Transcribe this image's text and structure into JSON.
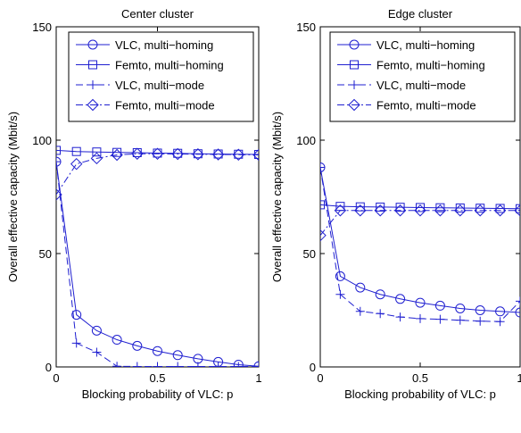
{
  "chart_data": [
    {
      "type": "line",
      "title": "Center cluster",
      "xlabel": "Blocking probability of VLC: p",
      "ylabel": "Overall effective capacity (Mbit/s)",
      "xlim": [
        0,
        1
      ],
      "ylim": [
        0,
        150
      ],
      "xticks": [
        "0",
        "0.5",
        "1"
      ],
      "yticks": [
        "0",
        "50",
        "100",
        "150"
      ],
      "grid": false,
      "legend_position": "top-right",
      "x": [
        0,
        0.1,
        0.2,
        0.3,
        0.4,
        0.5,
        0.6,
        0.7,
        0.8,
        0.9,
        1.0
      ],
      "series": [
        {
          "name": "VLC, multi−homing",
          "marker": "circle",
          "dash": "solid",
          "values": [
            90.5,
            23,
            16,
            12,
            9.3,
            7,
            5.2,
            3.6,
            2.2,
            1.0,
            0.3
          ]
        },
        {
          "name": "Femto, multi−homing",
          "marker": "square",
          "dash": "solid",
          "values": [
            95.5,
            95,
            94.8,
            94.6,
            94.5,
            94.3,
            94.2,
            94.0,
            93.9,
            93.8,
            93.7
          ]
        },
        {
          "name": "VLC, multi−mode",
          "marker": "plus",
          "dash": "dashed",
          "values": [
            90.5,
            10.5,
            6.5,
            0.3,
            0.2,
            0.2,
            0.2,
            0.2,
            0.2,
            0.2,
            0.2
          ]
        },
        {
          "name": "Femto, multi−mode",
          "marker": "diamond",
          "dash": "dashdot",
          "values": [
            76,
            89.5,
            92,
            93.5,
            94,
            94,
            93.9,
            93.8,
            93.7,
            93.6,
            93.5
          ]
        }
      ]
    },
    {
      "type": "line",
      "title": "Edge cluster",
      "xlabel": "Blocking probability of VLC: p",
      "ylabel": "Overall effective capacity (Mbit/s)",
      "xlim": [
        0,
        1
      ],
      "ylim": [
        0,
        150
      ],
      "xticks": [
        "0",
        "0.5",
        "1"
      ],
      "yticks": [
        "0",
        "50",
        "100",
        "150"
      ],
      "grid": false,
      "legend_position": "top-right",
      "x": [
        0,
        0.1,
        0.2,
        0.3,
        0.4,
        0.5,
        0.6,
        0.7,
        0.8,
        0.9,
        1.0
      ],
      "series": [
        {
          "name": "VLC, multi−homing",
          "marker": "circle",
          "dash": "solid",
          "values": [
            88,
            40,
            35,
            32,
            30,
            28.3,
            27,
            25.8,
            25,
            24.5,
            24
          ]
        },
        {
          "name": "Femto, multi−homing",
          "marker": "square",
          "dash": "solid",
          "values": [
            71.5,
            70.8,
            70.6,
            70.5,
            70.4,
            70.3,
            70.2,
            70.1,
            70,
            69.9,
            69.8
          ]
        },
        {
          "name": "VLC, multi−mode",
          "marker": "plus",
          "dash": "dashed",
          "values": [
            88,
            32,
            24.5,
            23.5,
            22,
            21.3,
            21,
            20.6,
            20.2,
            20,
            29
          ]
        },
        {
          "name": "Femto, multi−mode",
          "marker": "diamond",
          "dash": "dashdot",
          "values": [
            58,
            69,
            69,
            69,
            69,
            69,
            69,
            69,
            69,
            69,
            69
          ]
        }
      ]
    }
  ],
  "style": {
    "line_color": "#1f1fd0",
    "axis_color": "#000000",
    "background": "#ffffff"
  }
}
